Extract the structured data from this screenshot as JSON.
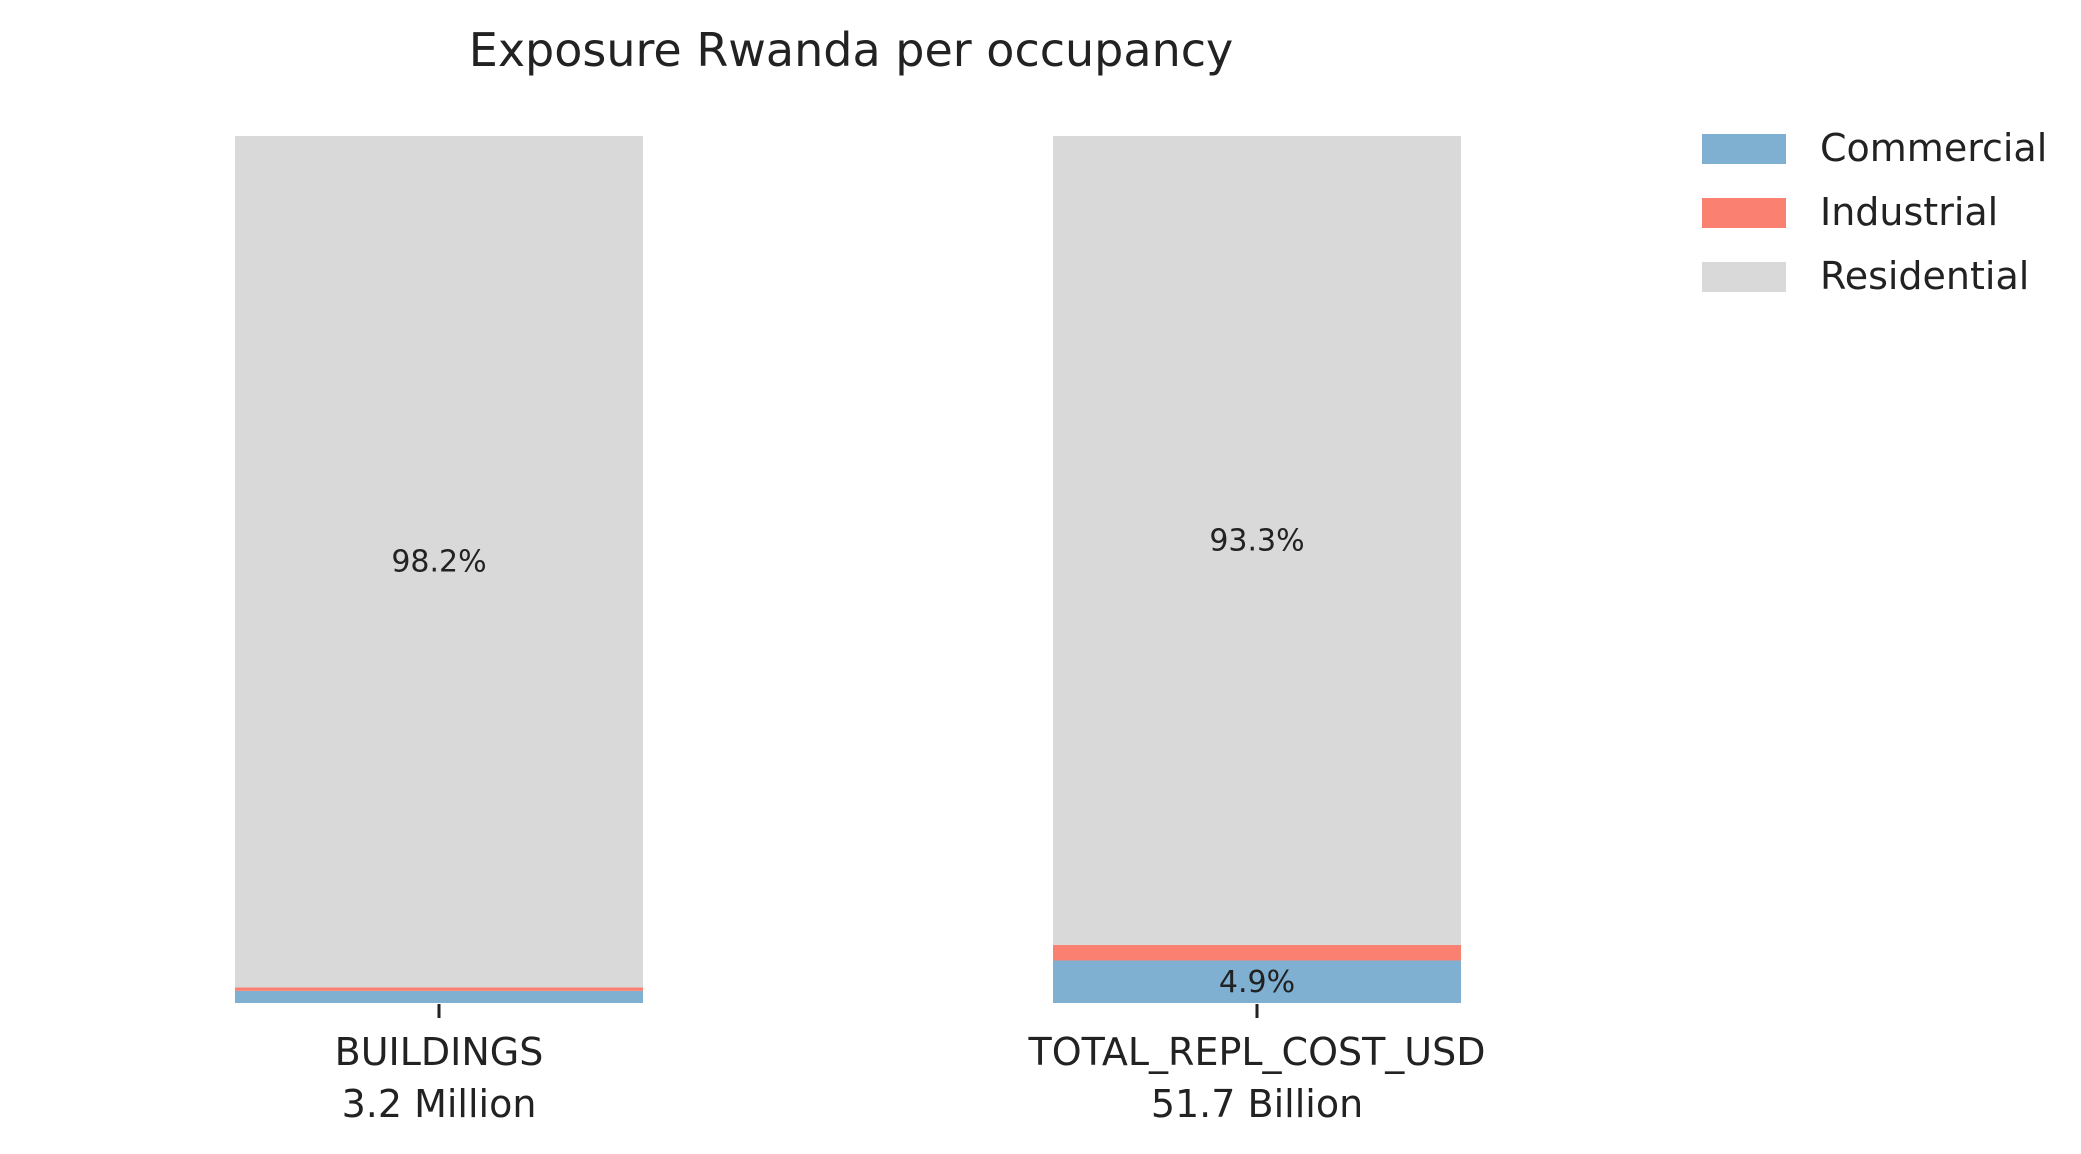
{
  "chart_data": {
    "type": "bar",
    "stacked": true,
    "normalized": true,
    "title": "Exposure Rwanda per occupancy",
    "xlabel": "",
    "ylabel": "",
    "ylim": [
      0,
      100
    ],
    "grid": false,
    "legend_position": "top-right",
    "categories": [
      "BUILDINGS",
      "TOTAL_REPL_COST_USD"
    ],
    "category_totals": [
      "3.2 Million",
      "51.7 Billion"
    ],
    "series": [
      {
        "name": "Commercial",
        "color": "#7fb0d2",
        "values": [
          1.4,
          4.9
        ],
        "labels": [
          "",
          "4.9%"
        ]
      },
      {
        "name": "Industrial",
        "color": "#fa8072",
        "values": [
          0.4,
          1.8
        ],
        "labels": [
          "",
          ""
        ]
      },
      {
        "name": "Residential",
        "color": "#d9d9d9",
        "values": [
          98.2,
          93.3
        ],
        "labels": [
          "98.2%",
          "93.3%"
        ]
      }
    ]
  }
}
